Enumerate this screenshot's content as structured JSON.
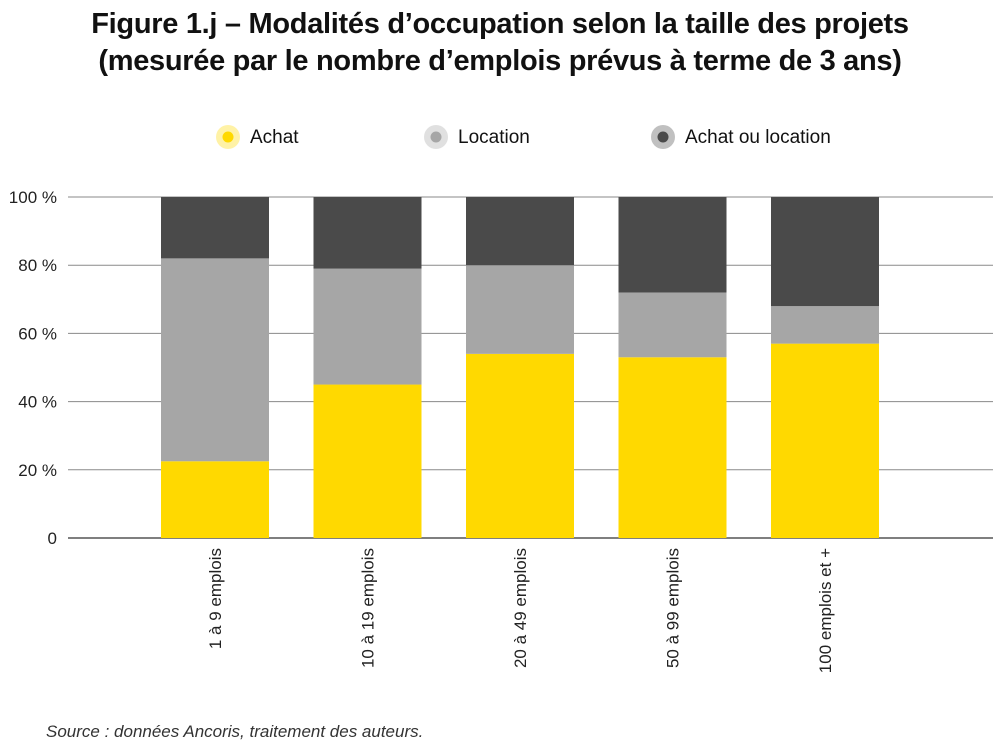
{
  "chart_data": {
    "type": "bar",
    "stacked": true,
    "title_line1": "Figure 1.j – Modalités d’occupation selon la taille des projets",
    "title_line2": "(mesurée par le nombre d’emplois prévus à terme de 3 ans)",
    "categories": [
      "1 à 9 emplois",
      "10 à 19 emplois",
      "20 à 49 emplois",
      "50 à 99 emplois",
      "100 emplois et +"
    ],
    "series": [
      {
        "name": "Achat",
        "color": "#FFD900",
        "values": [
          22.5,
          45,
          54,
          53,
          57
        ]
      },
      {
        "name": "Location",
        "color": "#A6A6A6",
        "values": [
          59.5,
          34,
          26,
          19,
          11
        ]
      },
      {
        "name": "Achat ou location",
        "color": "#4A4A4A",
        "values": [
          18,
          21,
          20,
          28,
          32
        ]
      }
    ],
    "yticks": [
      "0",
      "20 %",
      "40 %",
      "60 %",
      "80 %",
      "100 %"
    ],
    "ylim": [
      0,
      100
    ],
    "grid": true,
    "legend_position": "top"
  },
  "source": "Source : données Ancoris, traitement des auteurs."
}
